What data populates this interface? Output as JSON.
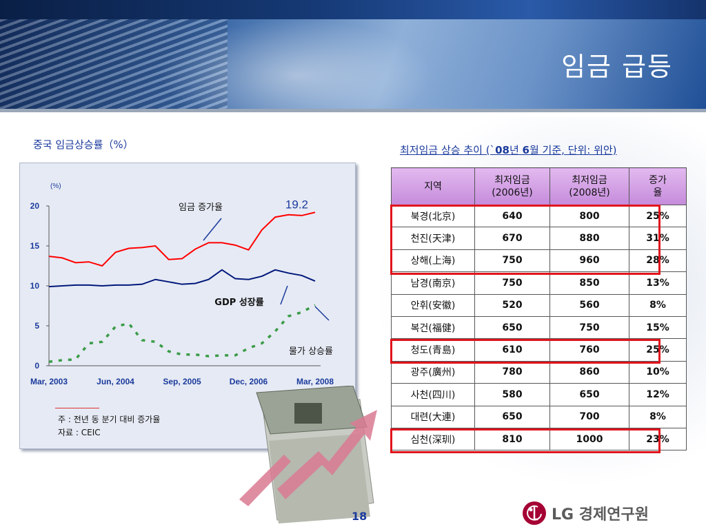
{
  "slide": {
    "title": "임금 급등",
    "page_number": "18",
    "logo_text": "LG 경제연구원"
  },
  "chart_section": {
    "title": "중국 임금상승률（%）",
    "note1": "주 : 전년 동 분기 대비 증가율",
    "note2": "자료 : CEIC"
  },
  "chart_data": {
    "type": "line",
    "title": "중국 임금상승률（%）",
    "ylabel": "(%)",
    "ylim": [
      0,
      20
    ],
    "yticks": [
      "0",
      "5",
      "10",
      "15",
      "20"
    ],
    "xticks": [
      "Mar, 2003",
      "Jun, 2004",
      "Sep, 2005",
      "Dec, 2006",
      "Mar, 2008"
    ],
    "x_count": 21,
    "series": [
      {
        "name": "임금 증가율",
        "color": "#ff0000",
        "style": "solid",
        "values": [
          13.7,
          13.5,
          12.9,
          13.0,
          12.5,
          14.2,
          14.7,
          14.8,
          15.0,
          13.3,
          13.4,
          14.6,
          15.4,
          15.4,
          15.1,
          14.5,
          17.0,
          18.6,
          18.9,
          18.8,
          19.2
        ]
      },
      {
        "name": "GDP 성장률",
        "color": "#00177a",
        "style": "solid",
        "values": [
          9.9,
          10.0,
          10.1,
          10.1,
          10.0,
          10.1,
          10.1,
          10.2,
          10.8,
          10.5,
          10.2,
          10.3,
          10.8,
          12.0,
          10.9,
          10.8,
          11.2,
          12.0,
          11.6,
          11.3,
          10.6
        ]
      },
      {
        "name": "물가 상승률",
        "color": "#3a9b48",
        "style": "dashed",
        "values": [
          0.5,
          0.7,
          0.8,
          2.8,
          3.0,
          4.9,
          5.3,
          3.2,
          3.0,
          1.8,
          1.4,
          1.4,
          1.2,
          1.3,
          1.3,
          2.2,
          2.8,
          4.3,
          6.2,
          6.7,
          7.6
        ]
      }
    ],
    "annotations": [
      {
        "text": "19.2",
        "color": "#1a3a9c"
      }
    ],
    "grid": false
  },
  "table": {
    "title_prefix": "최저임금 상승 추이 (`",
    "title_bold1": "08",
    "title_mid": "년 ",
    "title_bold2": "6",
    "title_suffix": "월 기준, 단위: 위안)",
    "headers": [
      "지역",
      "최저임금\n(2006년)",
      "최저임금\n(2008년)",
      "증가\n율"
    ],
    "rows": [
      [
        "북경(北京)",
        "640",
        "800",
        "25%"
      ],
      [
        "천진(天津)",
        "670",
        "880",
        "31%"
      ],
      [
        "상해(上海)",
        "750",
        "960",
        "28%"
      ],
      [
        "남경(南京)",
        "750",
        "850",
        "13%"
      ],
      [
        "안휘(安徽)",
        "520",
        "560",
        "8%"
      ],
      [
        "복건(福健)",
        "650",
        "750",
        "15%"
      ],
      [
        "청도(青島)",
        "610",
        "760",
        "25%"
      ],
      [
        "광주(廣州)",
        "780",
        "860",
        "10%"
      ],
      [
        "사천(四川)",
        "580",
        "650",
        "12%"
      ],
      [
        "대련(大連)",
        "650",
        "700",
        "8%"
      ],
      [
        "심천(深玔)",
        "810",
        "1000",
        "23%"
      ]
    ],
    "highlight_color": "#e0141c"
  }
}
